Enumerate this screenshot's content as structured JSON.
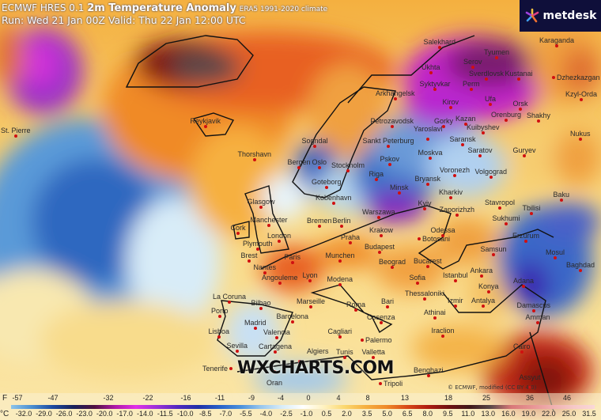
{
  "header": {
    "model": "ECMWF HRES 0.1",
    "product": "2m Temperature Anomaly",
    "climate": "ERA5 1991-2020 climate",
    "run_line": "Run: Wed 21 Jan 00Z Valid: Thu 22 Jan 12:00 UTC"
  },
  "logo": {
    "text": "metdesk"
  },
  "watermark": "WXCHARTS.COM",
  "copyright": "© ECMWF, modified (CC BY 4.0)",
  "legend": {
    "f_unit": "F",
    "c_unit": "°C",
    "f_labels": [
      "-57",
      "-47",
      "-32",
      "-22",
      "-16",
      "-11",
      "-9",
      "-4",
      "0",
      "4",
      "8",
      "13",
      "18",
      "25",
      "36",
      "46"
    ],
    "c_labels": [
      "-32.0",
      "-29.0",
      "-26.0",
      "-23.0",
      "-20.0",
      "-17.0",
      "-14.0",
      "-11.5",
      "-10.0",
      "-8.5",
      "-7.0",
      "-5.5",
      "-4.0",
      "-2.5",
      "-1.0",
      "0.5",
      "2.0",
      "3.5",
      "5.0",
      "6.5",
      "8.0",
      "9.5",
      "11.0",
      "13.0",
      "16.0",
      "19.0",
      "22.0",
      "25.0",
      "31.5"
    ],
    "colors": [
      "#8cc4ea",
      "#4a8ed0",
      "#1c4aa0",
      "#18205a",
      "#501040",
      "#b018a8",
      "#e030e8",
      "#9a30d8",
      "#5028c0",
      "#2030a8",
      "#2860c8",
      "#4a90dc",
      "#9ac8ee",
      "#d8ecf8",
      "#ffffff",
      "#fff2c0",
      "#fbd870",
      "#f6b040",
      "#ef8a28",
      "#d84818",
      "#b01c10",
      "#701010",
      "#401818",
      "#5a4848",
      "#d87878",
      "#e89494",
      "#f0b0b0",
      "#f6c8c8",
      "#fad8d8"
    ]
  },
  "cities": [
    "Reykjavik",
    "Thorshavn",
    "St. Pierre",
    "Sogndal",
    "Bergen",
    "Oslo",
    "Stockholm",
    "Goteborg",
    "Kobenhavn",
    "Glasgow",
    "Manchester",
    "Cork",
    "London",
    "Plymouth",
    "Brest",
    "Paris",
    "Nantes",
    "Angouleme",
    "Lyon",
    "Bremen",
    "Berlin",
    "Praha",
    "Munchen",
    "Krakow",
    "Warszawa",
    "Minsk",
    "Kyiv",
    "Riga",
    "Pskov",
    "Sankt Peterburg",
    "Petrozavodsk",
    "Arkhangelsk",
    "Budapest",
    "Bucarest",
    "Sofia",
    "Beograd",
    "Modena",
    "Marseille",
    "Bilbao",
    "La Coruna",
    "Porto",
    "Madrid",
    "Lisboa",
    "Valencia",
    "Barcelona",
    "Sevilla",
    "Cartagena",
    "Algiers",
    "Oran",
    "Tunis",
    "Cagliari",
    "Roma",
    "Bari",
    "Cosenza",
    "Palermo",
    "Valletta",
    "Tripoli",
    "Benghazi",
    "Istanbul",
    "Ankara",
    "Konya",
    "Izmir",
    "Antalya",
    "Iraclion",
    "Athinai",
    "Thessaloniki",
    "Samsun",
    "Odessa",
    "Botosani",
    "Zaporizhzh",
    "Kharkiv",
    "Stavropol",
    "Sukhumi",
    "Tbilisi",
    "Baku",
    "Erzurum",
    "Mosul",
    "Baghdad",
    "Adana",
    "Damascus",
    "Amman",
    "Cairo",
    "Assyut",
    "Moskva",
    "Saransk",
    "Yaroslavl",
    "Gorky",
    "Kazan",
    "Kirov",
    "Syktyvkar",
    "Ukhta",
    "Perm",
    "Sverdlovsk",
    "Serov",
    "Tyumen",
    "Kustanai",
    "Ufa",
    "Orsk",
    "Orenburg",
    "Shakhy",
    "Kuibyshev",
    "Saratov",
    "Guryev",
    "Voronezh",
    "Volgograd",
    "Bryansk",
    "Karaganda",
    "Dzhezkazgan",
    "Kzyl-Orda",
    "Nukus",
    "Salekhard",
    "Tenerife"
  ]
}
